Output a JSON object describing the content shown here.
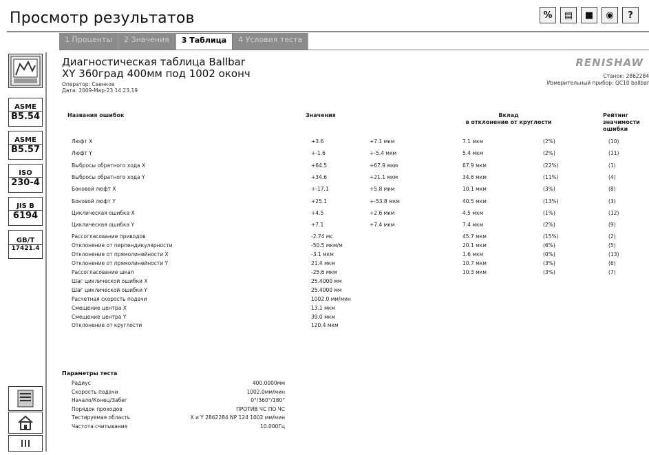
{
  "app": {
    "title": "Просмотр результатов"
  },
  "toolbar": {
    "buttons": [
      {
        "name": "percent-icon",
        "glyph": "%"
      },
      {
        "name": "printer-icon",
        "glyph": "▤"
      },
      {
        "name": "save-icon",
        "glyph": "■"
      },
      {
        "name": "globe-icon",
        "glyph": "◉"
      },
      {
        "name": "help-icon",
        "glyph": "?"
      }
    ]
  },
  "tabs": [
    {
      "label": "1 Проценты",
      "active": false
    },
    {
      "label": "2 Значения",
      "active": false
    },
    {
      "label": "3 Таблица",
      "active": true
    },
    {
      "label": "4 Условия теста",
      "active": false
    }
  ],
  "sidebar": {
    "standards": [
      {
        "top": "ASME",
        "bottom": "B5.54"
      },
      {
        "top": "ASME",
        "bottom": "B5.57"
      },
      {
        "top": "ISO",
        "bottom": "230-4"
      },
      {
        "top": "JIS B",
        "bottom": "6194"
      },
      {
        "top": "GB/T",
        "bottom": "17421.4"
      }
    ]
  },
  "document": {
    "title_line1": "Диагностическая таблица Ballbar",
    "title_line2": "XY 360град 400мм под 1002 оконч",
    "operator": "Оператор: Саенков",
    "date": "Дата: 2009-Мар-23 14.23.19",
    "logo": "RENISHAW",
    "machine": "Станок: 2862284",
    "instrument": "Измерительный прибор: QC10 ballbar"
  },
  "table": {
    "headers": {
      "name": "Названия ошибок",
      "values": "Значения",
      "contribution": "Вклад\nв отклонение от круглости",
      "rating": "Рейтинг\nзначимости\nошибки"
    },
    "rows": [
      {
        "name": "Люфт Х",
        "v1": "+3.6",
        "v2": "+7.1 мкм",
        "c1": "7.1 мкм",
        "c2": "(2%)",
        "r": "(10)"
      },
      {
        "name": "Люфт Y",
        "v1": "+-1.6",
        "v2": "+-5.4 мкм",
        "c1": "5.4 мкм",
        "c2": "(2%)",
        "r": "(11)"
      },
      {
        "name": "Выбросы обратного хода Х",
        "v1": "+64.5",
        "v2": "+67.9 мкм",
        "c1": "67.9 мкм",
        "c2": "(22%)",
        "r": "(1)"
      },
      {
        "name": "Выбросы обратного хода Y",
        "v1": "+34.6",
        "v2": "+21.1 мкм",
        "c1": "34.6 мкм",
        "c2": "(11%)",
        "r": "(4)"
      },
      {
        "name": "Боковой люфт Х",
        "v1": "+-17.1",
        "v2": "+5.8 мкм",
        "c1": "10.1 мкм",
        "c2": "(3%)",
        "r": "(8)"
      },
      {
        "name": "Боковой люфт Y",
        "v1": "+25.1",
        "v2": "+-53.8 мкм",
        "c1": "40.5 мкм",
        "c2": "(13%)",
        "r": "(3)"
      },
      {
        "name": "Циклическая ошибка Х",
        "v1": "+4.5",
        "v2": "+2.6 мкм",
        "c1": "4.5 мкм",
        "c2": "(1%)",
        "r": "(12)"
      },
      {
        "name": "Циклическая ошибка Y",
        "v1": "+7.1",
        "v2": "+7.4 мкм",
        "c1": "7.4 мкм",
        "c2": "(2%)",
        "r": "(9)"
      },
      {
        "name": "Рассогласование приводов",
        "v1": "-2.74 мс",
        "v2": "",
        "c1": "45.7 мкм",
        "c2": "(15%)",
        "r": "(2)"
      },
      {
        "name": "Отклонение от перпендикулярности",
        "v1": "-50.5 мкм/м",
        "v2": "",
        "c1": "20.1 мкм",
        "c2": "(6%)",
        "r": "(5)"
      },
      {
        "name": "Отклонение от прямолинейности Х",
        "v1": "-3.1 мкм",
        "v2": "",
        "c1": "1.6 мкм",
        "c2": "(0%)",
        "r": "(13)"
      },
      {
        "name": "Отклонение от прямолинейности Y",
        "v1": "21.4 мкм",
        "v2": "",
        "c1": "10.7 мкм",
        "c2": "(3%)",
        "r": "(6)"
      },
      {
        "name": "Рассогласование шкал",
        "v1": "-25.6 мкм",
        "v2": "",
        "c1": "10.3 мкм",
        "c2": "(3%)",
        "r": "(7)"
      },
      {
        "name": "Шаг циклической ошибки Х",
        "v1": "25.4000 мм",
        "v2": "",
        "c1": "",
        "c2": "",
        "r": ""
      },
      {
        "name": "Шаг циклической ошибки Y",
        "v1": "25.4000 мм",
        "v2": "",
        "c1": "",
        "c2": "",
        "r": ""
      },
      {
        "name": "Расчетная скорость подачи",
        "v1": "1002.0 мм/мин",
        "v2": "",
        "c1": "",
        "c2": "",
        "r": ""
      },
      {
        "name": "Смещение центра Х",
        "v1": "13.1 мкм",
        "v2": "",
        "c1": "",
        "c2": "",
        "r": ""
      },
      {
        "name": "Смещение центра Y",
        "v1": "39.0 мкм",
        "v2": "",
        "c1": "",
        "c2": "",
        "r": ""
      },
      {
        "name": "Отклонение от круглости",
        "v1": "120.4 мкм",
        "v2": "",
        "c1": "",
        "c2": "",
        "r": ""
      }
    ]
  },
  "params": {
    "title": "Параметры теста",
    "rows": [
      {
        "name": "Радиус",
        "value": "400.0000мм"
      },
      {
        "name": "Скорость подачи",
        "value": "1002.0мм/мин"
      },
      {
        "name": "Начало/Конец/Забег",
        "value": "0°/360°/180°"
      },
      {
        "name": "Порядок проходов",
        "value": "ПРОТИВ ЧС ПО ЧС"
      },
      {
        "name": "Тестируемая область",
        "value": "X и Y 2862284 NP 124 1002 мм/мин"
      },
      {
        "name": "Частота считывания",
        "value": "10.000Гц"
      }
    ]
  }
}
